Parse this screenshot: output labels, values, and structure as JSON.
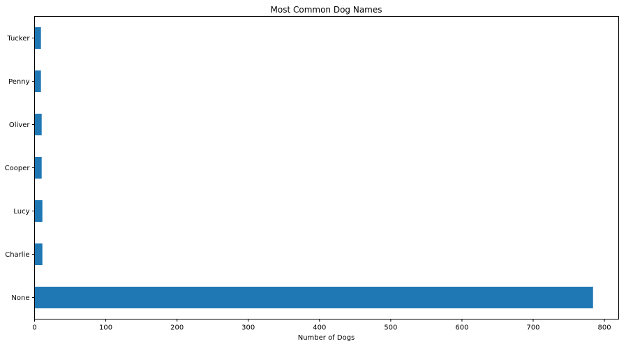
{
  "chart_data": {
    "type": "bar",
    "orientation": "horizontal",
    "title": "Most Common Dog Names",
    "xlabel": "Number of Dogs",
    "ylabel": "",
    "categories": [
      "None",
      "Charlie",
      "Lucy",
      "Cooper",
      "Oliver",
      "Penny",
      "Tucker"
    ],
    "values": [
      784,
      11,
      11,
      10,
      10,
      9,
      9
    ],
    "xlim": [
      0,
      820
    ],
    "xticks": [
      0,
      100,
      200,
      300,
      400,
      500,
      600,
      700,
      800
    ],
    "grid": false,
    "legend": "none",
    "bar_color": "#1f77b4"
  }
}
